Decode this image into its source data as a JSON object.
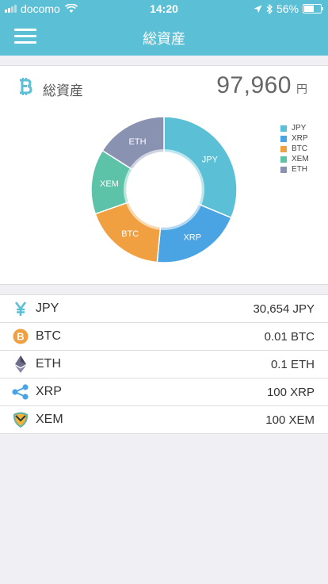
{
  "status_bar": {
    "carrier": "docomo",
    "time": "14:20",
    "battery": "56%",
    "battery_level": 0.56
  },
  "header": {
    "title": "総資産"
  },
  "summary": {
    "label": "総資産",
    "total_value": "97,960",
    "total_unit": "円"
  },
  "chart_data": {
    "type": "pie",
    "categories": [
      "JPY",
      "XRP",
      "BTC",
      "XEM",
      "ETH"
    ],
    "values": [
      31.3,
      20.2,
      18.1,
      14.4,
      16.0
    ],
    "colors": [
      "#5bc0d5",
      "#4aa3e2",
      "#f0a040",
      "#5cc3a8",
      "#8a92b2"
    ],
    "legend_position": "top-right"
  },
  "holdings": [
    {
      "name": "JPY",
      "amount": "30,654 JPY",
      "icon": "yen-icon"
    },
    {
      "name": "BTC",
      "amount": "0.01 BTC",
      "icon": "bitcoin-icon"
    },
    {
      "name": "ETH",
      "amount": "0.1 ETH",
      "icon": "ethereum-icon"
    },
    {
      "name": "XRP",
      "amount": "100 XRP",
      "icon": "ripple-icon"
    },
    {
      "name": "XEM",
      "amount": "100 XEM",
      "icon": "nem-icon"
    }
  ]
}
